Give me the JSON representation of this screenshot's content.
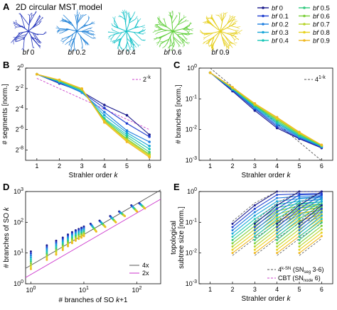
{
  "header": {
    "panel_letter": "A",
    "title": "2D circular MST model",
    "tree_labels": [
      "bf 0",
      "bf 0.2",
      "bf 0.4",
      "bf 0.6",
      "bf 0.9"
    ],
    "tree_colors": [
      "#2233bb",
      "#1c7fd6",
      "#15c2c8",
      "#5fcf3a",
      "#e6cf1e"
    ]
  },
  "legend": {
    "entries": [
      "bf 0",
      "bf 0.1",
      "bf 0.2",
      "bf 0.3",
      "bf 0.4",
      "bf 0.5",
      "bf 0.6",
      "bf 0.7",
      "bf 0.8",
      "bf 0.9"
    ],
    "colors": [
      "#1a1a8c",
      "#1f3fd0",
      "#1f7fe0",
      "#19a6d8",
      "#1cc7b8",
      "#33c97f",
      "#7ccf3a",
      "#b7d42a",
      "#e8d21c",
      "#f0b823"
    ]
  },
  "chart_data": [
    {
      "panel": "B",
      "type": "line",
      "xlabel": "Strahler order k",
      "ylabel": "# segments [norm.]",
      "x": [
        1,
        2,
        3,
        4,
        5,
        6
      ],
      "xlim": [
        0.5,
        6.5
      ],
      "ylim": [
        -9,
        0
      ],
      "yscale": "log2",
      "yticks": [
        0,
        -2,
        -4,
        -6,
        -8
      ],
      "ytick_labels": [
        "0",
        "-2",
        "-4",
        "-6",
        "-8"
      ],
      "series": [
        {
          "name": "bf 0",
          "values": [
            -0.6,
            -1.5,
            -2.3,
            -3.6,
            -4.6,
            -6.5
          ]
        },
        {
          "name": "bf 0.1",
          "values": [
            -0.6,
            -1.45,
            -2.35,
            -3.9,
            -5.4,
            -6.7
          ]
        },
        {
          "name": "bf 0.2",
          "values": [
            -0.6,
            -1.4,
            -2.4,
            -4.3,
            -6.1,
            -7.2
          ]
        },
        {
          "name": "bf 0.3",
          "values": [
            -0.6,
            -1.35,
            -2.3,
            -4.6,
            -6.3,
            -7.6
          ]
        },
        {
          "name": "bf 0.4",
          "values": [
            -0.6,
            -1.3,
            -2.2,
            -4.9,
            -6.5,
            -7.9
          ]
        },
        {
          "name": "bf 0.5",
          "values": [
            -0.6,
            -1.25,
            -2.15,
            -5.0,
            -6.7,
            -8.2
          ]
        },
        {
          "name": "bf 0.6",
          "values": [
            -0.6,
            -1.2,
            -2.1,
            -5.1,
            -6.9,
            -8.4
          ]
        },
        {
          "name": "bf 0.7",
          "values": [
            -0.6,
            -1.2,
            -2.1,
            -5.2,
            -7.0,
            -8.5
          ]
        },
        {
          "name": "bf 0.8",
          "values": [
            -0.6,
            -1.2,
            -2.0,
            -5.2,
            -7.1,
            -8.6
          ]
        },
        {
          "name": "bf 0.9",
          "values": [
            -0.6,
            -1.15,
            -2.0,
            -5.3,
            -7.2,
            -8.7
          ]
        }
      ],
      "reference": {
        "label": "2",
        "superscript": "-k",
        "values": [
          -1,
          -2,
          -3,
          -4,
          -5,
          -6
        ]
      },
      "legend_position": "top-right"
    },
    {
      "panel": "C",
      "type": "line",
      "xlabel": "Strahler order k",
      "ylabel": "# branches [norm.]",
      "x": [
        1,
        2,
        3,
        4,
        5,
        6
      ],
      "xlim": [
        0.5,
        6.5
      ],
      "ylim": [
        -3,
        0
      ],
      "yscale": "log10",
      "yticks": [
        0,
        -1,
        -2,
        -3
      ],
      "ytick_labels": [
        "0",
        "-1",
        "-2",
        "-3"
      ],
      "series": [
        {
          "name": "bf 0",
          "values": [
            -0.15,
            -0.75,
            -1.38,
            -1.95,
            -2.3,
            -2.6
          ]
        },
        {
          "name": "bf 0.1",
          "values": [
            -0.15,
            -0.72,
            -1.33,
            -1.9,
            -2.28,
            -2.58
          ]
        },
        {
          "name": "bf 0.2",
          "values": [
            -0.15,
            -0.7,
            -1.3,
            -1.85,
            -2.25,
            -2.56
          ]
        },
        {
          "name": "bf 0.3",
          "values": [
            -0.15,
            -0.68,
            -1.27,
            -1.8,
            -2.22,
            -2.55
          ]
        },
        {
          "name": "bf 0.4",
          "values": [
            -0.15,
            -0.67,
            -1.24,
            -1.76,
            -2.2,
            -2.54
          ]
        },
        {
          "name": "bf 0.5",
          "values": [
            -0.15,
            -0.66,
            -1.22,
            -1.72,
            -2.17,
            -2.53
          ]
        },
        {
          "name": "bf 0.6",
          "values": [
            -0.15,
            -0.65,
            -1.2,
            -1.68,
            -2.14,
            -2.52
          ]
        },
        {
          "name": "bf 0.7",
          "values": [
            -0.15,
            -0.64,
            -1.18,
            -1.65,
            -2.12,
            -2.51
          ]
        },
        {
          "name": "bf 0.8",
          "values": [
            -0.15,
            -0.63,
            -1.16,
            -1.62,
            -2.1,
            -2.5
          ]
        },
        {
          "name": "bf 0.9",
          "values": [
            -0.15,
            -0.62,
            -1.15,
            -1.6,
            -2.08,
            -2.5
          ]
        }
      ],
      "reference": {
        "label": "4",
        "superscript": "1-k",
        "values": [
          0,
          -0.602,
          -1.204,
          -1.806,
          -2.408,
          -3.01
        ]
      },
      "legend_position": "top-right"
    },
    {
      "panel": "D",
      "type": "scatter",
      "xlabel": "# branches of SO k+1",
      "ylabel": "# branches of SO k",
      "xscale": "log10",
      "yscale": "log10",
      "xlim": [
        -0.1,
        2.45
      ],
      "ylim": [
        0,
        3
      ],
      "xtick_labels": [
        "0",
        "1",
        "2"
      ],
      "ytick_labels": [
        "0",
        "1",
        "2",
        "3"
      ],
      "groups": [
        {
          "logx": 0.0,
          "ylogmin": 0.48,
          "ylogmax": 1.05
        },
        {
          "logx": 0.301,
          "ylogmin": 0.78,
          "ylogmax": 1.25
        },
        {
          "logx": 0.477,
          "ylogmin": 0.95,
          "ylogmax": 1.4
        },
        {
          "logx": 0.602,
          "ylogmin": 1.1,
          "ylogmax": 1.5
        },
        {
          "logx": 0.699,
          "ylogmin": 1.22,
          "ylogmax": 1.6
        },
        {
          "logx": 0.778,
          "ylogmin": 1.32,
          "ylogmax": 1.68
        },
        {
          "logx": 0.845,
          "ylogmin": 1.4,
          "ylogmax": 1.74
        },
        {
          "logx": 0.903,
          "ylogmin": 1.46,
          "ylogmax": 1.78
        },
        {
          "logx": 0.954,
          "ylogmin": 1.5,
          "ylogmax": 1.82
        },
        {
          "logx": 1.0,
          "ylogmin": 1.55,
          "ylogmax": 1.86
        },
        {
          "logx": 1.18,
          "ylogmin": 1.7,
          "ylogmax": 1.95
        },
        {
          "logx": 1.35,
          "ylogmin": 1.85,
          "ylogmax": 2.05
        },
        {
          "logx": 1.55,
          "ylogmin": 2.0,
          "ylogmax": 2.2
        },
        {
          "logx": 1.72,
          "ylogmin": 2.2,
          "ylogmax": 2.35
        },
        {
          "logx": 1.95,
          "ylogmin": 2.35,
          "ylogmax": 2.55
        },
        {
          "logx": 2.1,
          "ylogmin": 2.45,
          "ylogmax": 2.62
        }
      ],
      "reference_lines": [
        {
          "label": "4x",
          "factor": 4,
          "color": "#555555"
        },
        {
          "label": "2x",
          "factor": 2,
          "color": "#cc33cc"
        }
      ],
      "legend_position": "bottom-right"
    },
    {
      "panel": "E",
      "type": "line",
      "xlabel": "Strahler order k",
      "ylabel": "topological subtree size [norm.]",
      "yscale": "log10",
      "xlim": [
        0.5,
        6.5
      ],
      "ylim": [
        -3,
        0
      ],
      "xticks": [
        1,
        2,
        3,
        4,
        5,
        6
      ],
      "ytick_labels": [
        "0",
        "-1",
        "-2",
        "-3"
      ],
      "series_groups": [
        {
          "start_k": 2,
          "top": [
            -1.05,
            -0.45,
            0.0,
            0.0,
            0.0
          ],
          "bottom": [
            -2.0,
            -1.45,
            -0.95,
            -0.7,
            -0.6
          ]
        },
        {
          "start_k": 3,
          "top": [
            -1.05,
            -0.45,
            0.0,
            0.0
          ],
          "bottom": [
            -2.0,
            -1.45,
            -0.95,
            -0.75
          ]
        },
        {
          "start_k": 4,
          "top": [
            -1.05,
            -0.45,
            0.0
          ],
          "bottom": [
            -2.0,
            -1.45,
            -0.95
          ]
        },
        {
          "start_k": 5,
          "top": [
            -1.05,
            -0.45
          ],
          "bottom": [
            -2.0,
            -1.45
          ]
        }
      ],
      "reference_legend": [
        {
          "label": "4",
          "sup": "k-SN",
          "detail": "(SN",
          "sub": "seg",
          "tail": " 3-6)",
          "color": "#555555"
        },
        {
          "label": "CBT",
          "sup": "",
          "detail": "(SN",
          "sub": "node",
          "tail": " 6)",
          "color": "#cc44cc"
        }
      ],
      "legend_position": "bottom-right"
    }
  ],
  "panels": {
    "B": {
      "letter": "B",
      "ref_label": "2",
      "ref_sup": "-k"
    },
    "C": {
      "letter": "C",
      "ref_label": "4",
      "ref_sup": "1-k"
    },
    "D": {
      "letter": "D",
      "legend": [
        "4x",
        "2x"
      ]
    },
    "E": {
      "letter": "E"
    }
  },
  "axis_text": {
    "xtick_k": [
      "1",
      "2",
      "3",
      "4",
      "5",
      "6"
    ],
    "ytick_base_2": "2",
    "ytick_base_10": "10",
    "strahler_prefix": "Strahler order ",
    "strahler_k": "k",
    "seg_label": "# segments [norm.]",
    "br_label": "# branches [norm.]",
    "d_ylabel_prefix": "# branches of SO ",
    "d_ylabel_k": "k",
    "d_xlabel_prefix": "# branches of SO ",
    "d_xlabel_k": "k",
    "d_xlabel_suffix": "+1",
    "e_ylabel_1": "topological",
    "e_ylabel_2": "subtree size [norm.]"
  }
}
